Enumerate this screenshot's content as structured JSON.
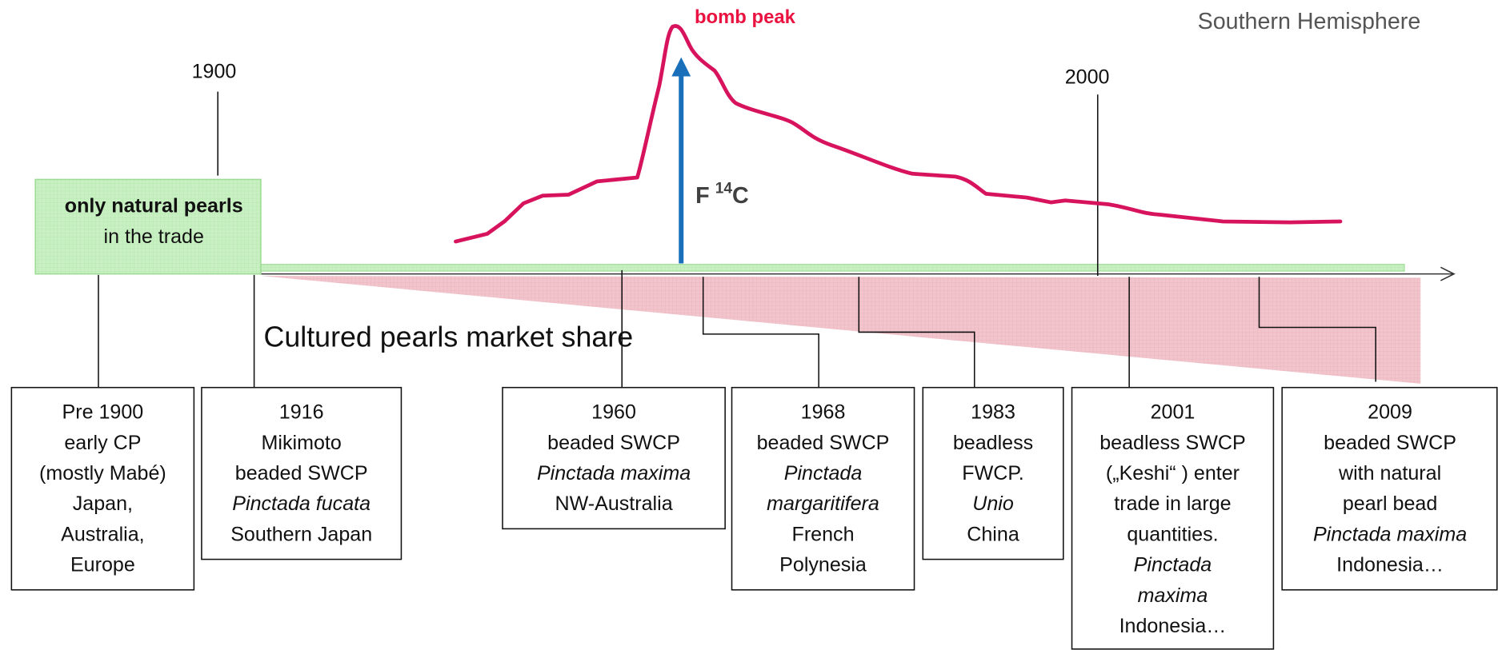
{
  "title": "Southern Hemisphere",
  "bomb_label": "bomb peak",
  "isotope_label": {
    "base": "F",
    "superscript": "14",
    "element": "C"
  },
  "year_markers": [
    "1900",
    "2000"
  ],
  "natural_box": {
    "bold": "only natural pearls",
    "text": "in the trade"
  },
  "market_share_label": "Cultured pearls market share",
  "events": [
    {
      "lines": [
        "Pre 1900",
        "early CP",
        "(mostly Mabé)",
        "Japan,",
        "Australia,",
        "Europe"
      ]
    },
    {
      "lines": [
        "1916",
        "Mikimoto",
        "beaded SWCP",
        {
          "text": "Pinctada fucata",
          "italic": true
        },
        "Southern Japan"
      ]
    },
    {
      "lines": [
        "1960",
        "beaded SWCP",
        {
          "text": "Pinctada maxima",
          "italic": true
        },
        "NW-Australia"
      ]
    },
    {
      "lines": [
        "1968",
        "beaded SWCP",
        {
          "text": "Pinctada",
          "italic": true
        },
        {
          "text": "margaritifera",
          "italic": true
        },
        "French",
        "Polynesia"
      ]
    },
    {
      "lines": [
        "1983",
        "beadless",
        "FWCP.",
        {
          "text": "Unio",
          "italic": true
        },
        "China"
      ]
    },
    {
      "lines": [
        "2001",
        "beadless SWCP",
        "(„Keshi“ ) enter",
        "trade in large",
        "quantities.",
        {
          "text": "Pinctada",
          "italic": true
        },
        {
          "text": "maxima",
          "italic": true
        },
        "Indonesia…"
      ]
    },
    {
      "lines": [
        "2009",
        "beaded SWCP",
        "with natural",
        "pearl bead",
        {
          "text": "Pinctada maxima",
          "italic": true
        },
        "Indonesia…"
      ]
    }
  ]
}
